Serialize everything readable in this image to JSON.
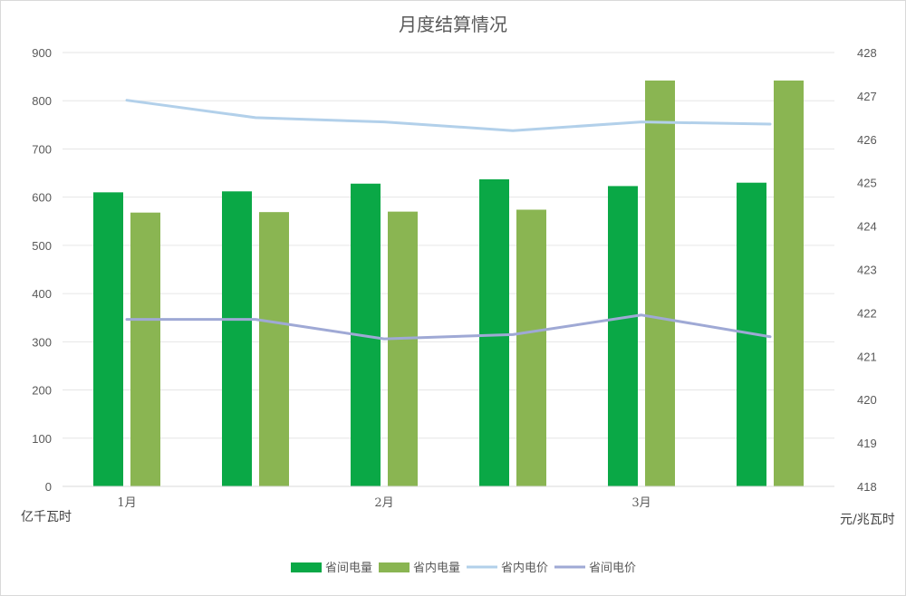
{
  "chart_data": {
    "type": "bar",
    "title": "月度结算情况",
    "x_tick_labels": [
      "1月",
      "2月",
      "3月"
    ],
    "n_points": 6,
    "left_axis": {
      "unit_label": "亿千瓦时",
      "ylim": [
        0,
        900
      ],
      "ticks": [
        "0",
        "100",
        "200",
        "300",
        "400",
        "500",
        "600",
        "700",
        "800",
        "900"
      ]
    },
    "right_axis": {
      "unit_label": "元/兆瓦时",
      "ylim": [
        418,
        428
      ],
      "ticks": [
        "418",
        "419",
        "420",
        "421",
        "422",
        "423",
        "424",
        "425",
        "426",
        "427",
        "428"
      ]
    },
    "series": [
      {
        "name": "省间电量",
        "kind": "bar",
        "axis": "left",
        "color": "#0aa846",
        "values": [
          610,
          612,
          628,
          637,
          623,
          630
        ]
      },
      {
        "name": "省内电量",
        "kind": "bar",
        "axis": "left",
        "color": "#8ab552",
        "values": [
          568,
          569,
          570,
          574,
          842,
          842
        ]
      },
      {
        "name": "省内电价",
        "kind": "line",
        "axis": "right",
        "color": "#b2d0ea",
        "values": [
          426.9,
          426.5,
          426.4,
          426.2,
          426.4,
          426.35
        ]
      },
      {
        "name": "省间电价",
        "kind": "line",
        "axis": "right",
        "color": "#9fa9d5",
        "values": [
          421.85,
          421.85,
          421.4,
          421.5,
          421.95,
          421.45
        ]
      }
    ],
    "grid": true,
    "legend_position": "bottom"
  }
}
